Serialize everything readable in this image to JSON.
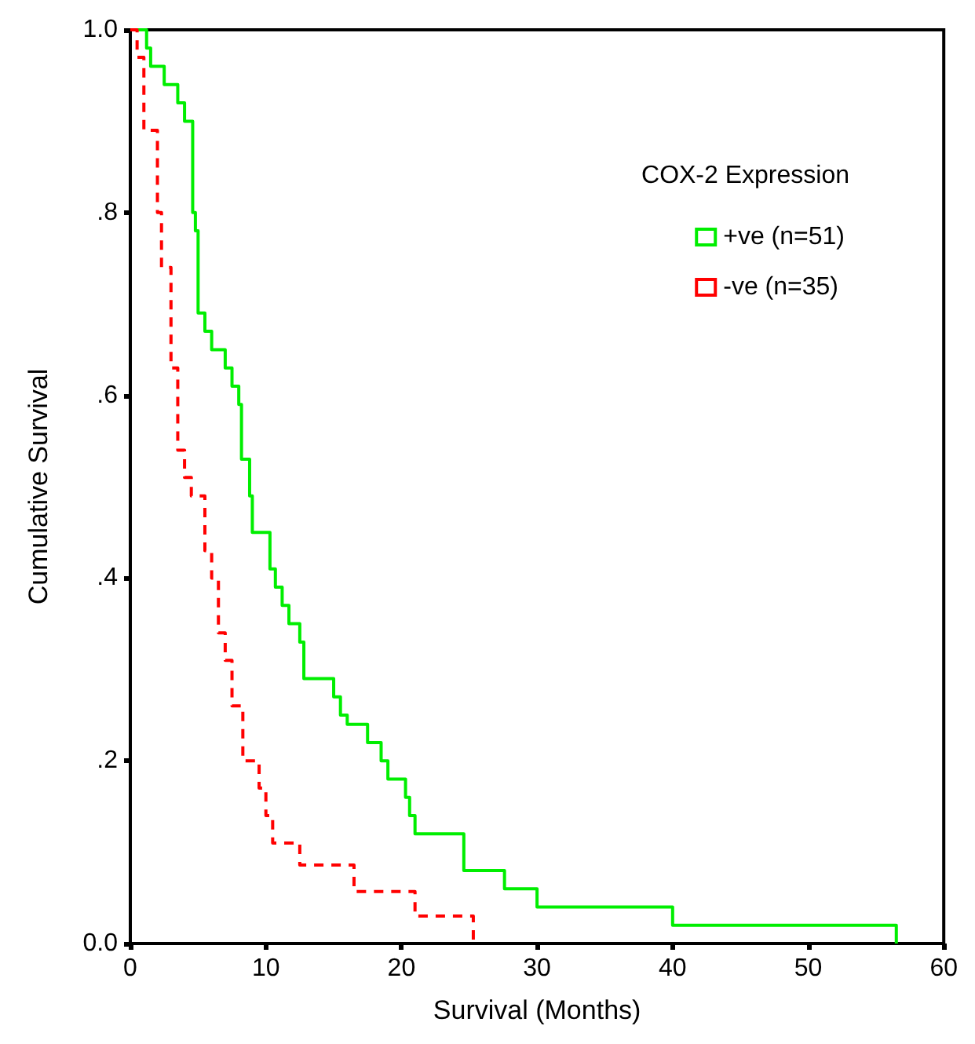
{
  "chart_data": {
    "type": "step",
    "xlabel": "Survival (Months)",
    "ylabel": "Cumulative Survival",
    "legend_title": "COX-2 Expression",
    "xlim": [
      0,
      60
    ],
    "xticks": [
      0,
      10,
      20,
      30,
      40,
      50,
      60
    ],
    "ylim": [
      0,
      1
    ],
    "yticks": [
      {
        "value": 0,
        "label": "0.0"
      },
      {
        "value": 0.2,
        "label": ".2"
      },
      {
        "value": 0.4,
        "label": ".4"
      },
      {
        "value": 0.6,
        "label": ".6"
      },
      {
        "value": 0.8,
        "label": ".8"
      },
      {
        "value": 1,
        "label": "1.0"
      }
    ],
    "grid": false,
    "legend": "top right",
    "marker": "none",
    "series": [
      {
        "name": "+ve (n=51)",
        "color": "#00ee00",
        "line_style": "solid",
        "x": [
          0,
          1.2,
          1.5,
          2.5,
          3.5,
          4,
          4.6,
          4.8,
          5,
          5.5,
          6,
          7,
          7.5,
          8,
          8.2,
          8.8,
          9,
          10.3,
          10.7,
          11.2,
          11.7,
          12.5,
          12.8,
          15,
          15.5,
          16,
          17.5,
          18.5,
          19,
          20.3,
          20.6,
          21,
          24.6,
          27.6,
          30,
          40,
          56.5
        ],
        "values": [
          1,
          0.98,
          0.96,
          0.94,
          0.92,
          0.9,
          0.8,
          0.78,
          0.69,
          0.67,
          0.65,
          0.63,
          0.61,
          0.59,
          0.53,
          0.49,
          0.45,
          0.41,
          0.39,
          0.37,
          0.35,
          0.33,
          0.29,
          0.27,
          0.25,
          0.24,
          0.22,
          0.2,
          0.18,
          0.16,
          0.14,
          0.12,
          0.08,
          0.06,
          0.04,
          0.02,
          0
        ]
      },
      {
        "name": "-ve (n=35)",
        "color": "#ff0000",
        "line_style": "dashed",
        "x": [
          0,
          0.5,
          1,
          2,
          2.3,
          3,
          3.5,
          4,
          4.5,
          5.5,
          6,
          6.5,
          7,
          7.5,
          8.3,
          9.5,
          10,
          10.5,
          12.5,
          16.5,
          21,
          25.3
        ],
        "values": [
          1,
          0.97,
          0.89,
          0.8,
          0.74,
          0.63,
          0.54,
          0.51,
          0.49,
          0.43,
          0.4,
          0.34,
          0.31,
          0.26,
          0.2,
          0.17,
          0.14,
          0.11,
          0.086,
          0.057,
          0.03,
          0
        ]
      }
    ]
  }
}
